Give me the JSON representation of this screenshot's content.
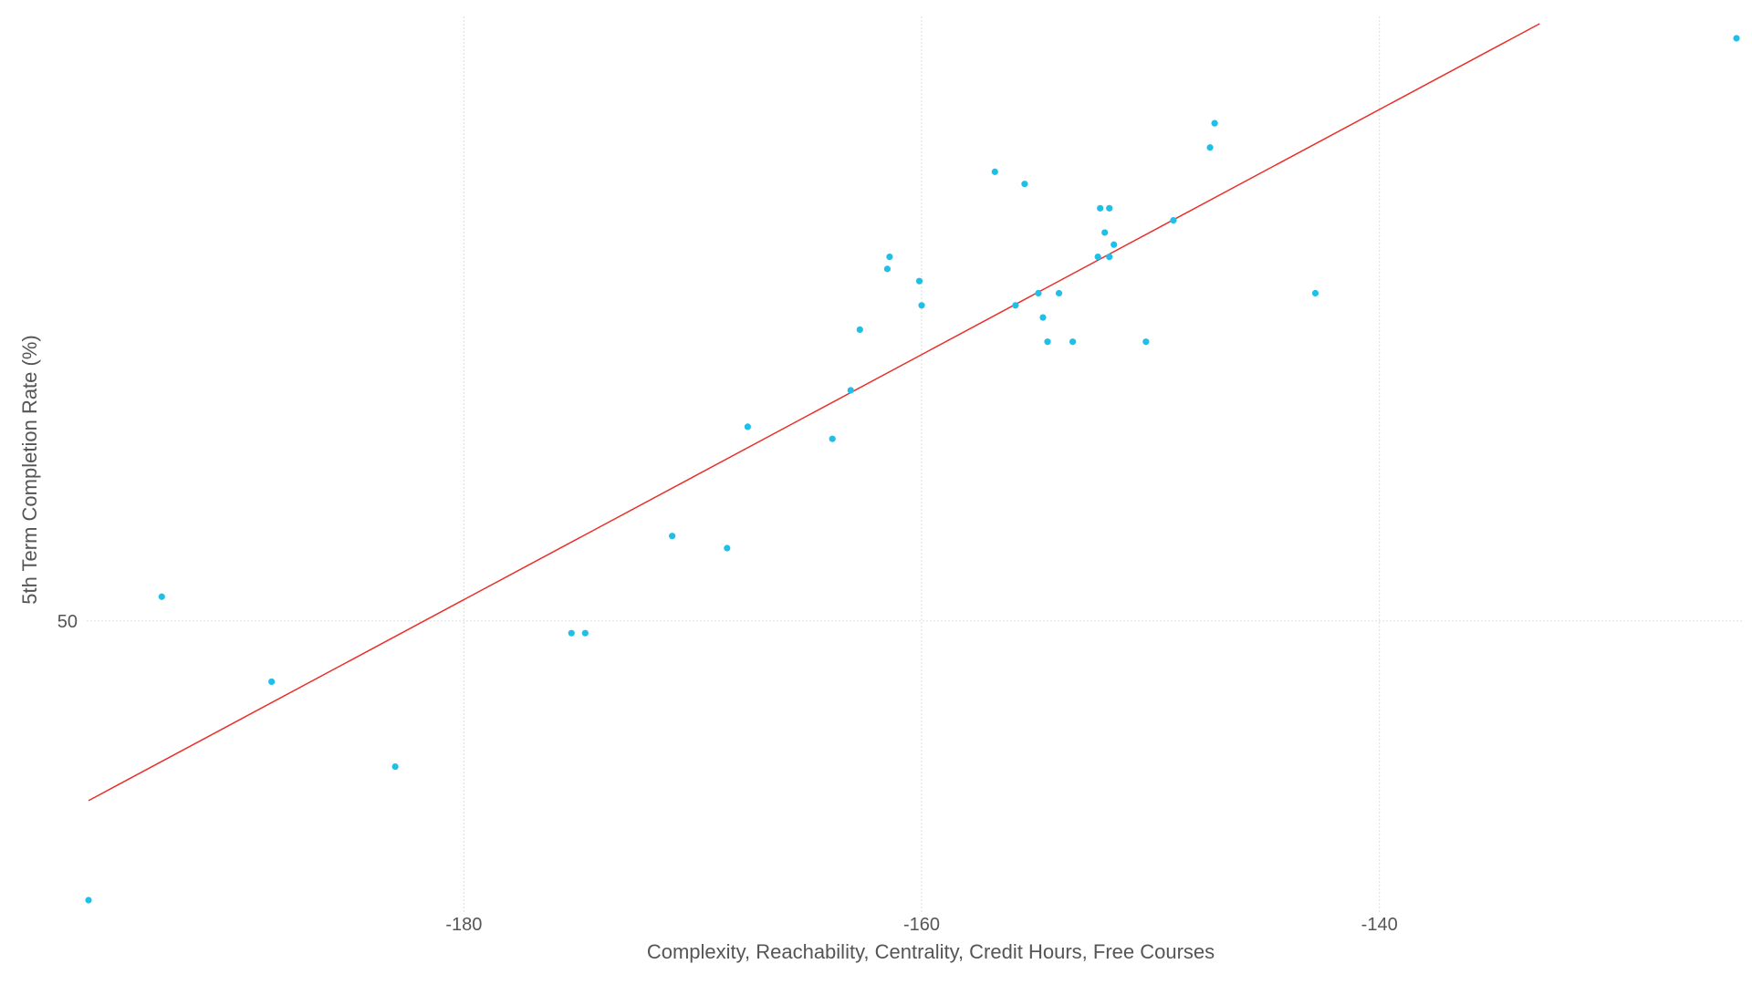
{
  "chart_data": {
    "type": "scatter",
    "title": "",
    "xlabel": "Complexity, Reachability, Centrality, Credit Hours, Free Courses",
    "ylabel": "5th Term Completion Rate (%)",
    "xlim": [
      -196.4,
      -124.4
    ],
    "ylim": [
      38.5,
      74.6
    ],
    "x_ticks": [
      -180,
      -160,
      -140
    ],
    "y_ticks": [
      50
    ],
    "grid": true,
    "colors": {
      "points": "#1fbfe8",
      "fit_line": "#e8302a",
      "grid": "#dddddd",
      "text": "#555555"
    },
    "series": [
      {
        "values": [
          {
            "x": -196.4,
            "y": 38.5
          },
          {
            "x": -193.2,
            "y": 51.0
          },
          {
            "x": -188.4,
            "y": 47.5
          },
          {
            "x": -183.0,
            "y": 44.0
          },
          {
            "x": -175.3,
            "y": 49.5
          },
          {
            "x": -174.7,
            "y": 49.5
          },
          {
            "x": -170.9,
            "y": 53.5
          },
          {
            "x": -168.5,
            "y": 53.0
          },
          {
            "x": -167.6,
            "y": 58.0
          },
          {
            "x": -163.9,
            "y": 57.5
          },
          {
            "x": -163.1,
            "y": 59.5
          },
          {
            "x": -162.7,
            "y": 62.0
          },
          {
            "x": -161.5,
            "y": 64.5
          },
          {
            "x": -161.4,
            "y": 65.0
          },
          {
            "x": -160.1,
            "y": 64.0
          },
          {
            "x": -160.0,
            "y": 63.0
          },
          {
            "x": -156.8,
            "y": 68.5
          },
          {
            "x": -155.9,
            "y": 63.0
          },
          {
            "x": -155.5,
            "y": 68.0
          },
          {
            "x": -154.9,
            "y": 63.5
          },
          {
            "x": -154.7,
            "y": 62.5
          },
          {
            "x": -154.5,
            "y": 61.5
          },
          {
            "x": -154.0,
            "y": 63.5
          },
          {
            "x": -153.4,
            "y": 61.5
          },
          {
            "x": -152.3,
            "y": 65.0
          },
          {
            "x": -152.2,
            "y": 67.0
          },
          {
            "x": -152.0,
            "y": 66.0
          },
          {
            "x": -151.8,
            "y": 67.0
          },
          {
            "x": -151.8,
            "y": 65.0
          },
          {
            "x": -151.6,
            "y": 65.5
          },
          {
            "x": -150.2,
            "y": 61.5
          },
          {
            "x": -149.0,
            "y": 66.5
          },
          {
            "x": -147.4,
            "y": 69.5
          },
          {
            "x": -147.2,
            "y": 70.5
          },
          {
            "x": -142.8,
            "y": 63.5
          },
          {
            "x": -124.4,
            "y": 74.0
          }
        ]
      }
    ],
    "fit_line": {
      "x": [
        -196.4,
        -133.0
      ],
      "y": [
        42.6,
        74.6
      ]
    }
  }
}
